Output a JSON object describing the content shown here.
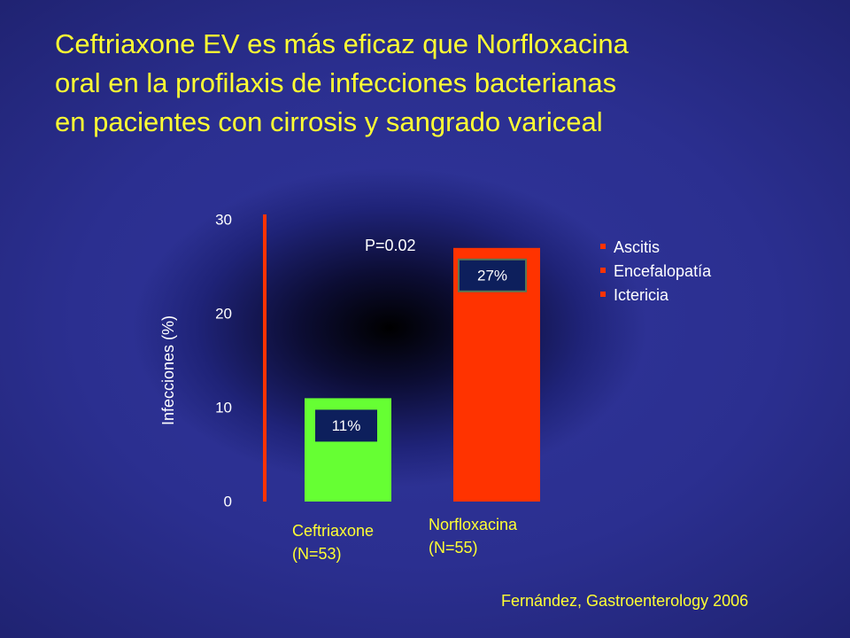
{
  "title_lines": [
    "Ceftriaxone EV es más eficaz que Norfloxacina",
    "oral en la profilaxis de infecciones bacterianas",
    "en pacientes con cirrosis y sangrado variceal"
  ],
  "legend_items": [
    "Ascitis",
    "Encefalopatía",
    "Ictericia"
  ],
  "source": "Fernández, Gastroenterology 2006",
  "colors": {
    "title": "#ffff33",
    "ceftriaxone_bar": "#66ff33",
    "norfloxacina_bar": "#ff3300",
    "value_box": "#0d1f5c",
    "axis": "#ff3300",
    "bullet": "#ff3300"
  },
  "chart_data": {
    "type": "bar",
    "categories": [
      [
        "Ceftriaxone",
        "(N=53)"
      ],
      [
        "Norfloxacina",
        "(N=55)"
      ]
    ],
    "values": [
      11,
      27
    ],
    "value_labels": [
      "11%",
      "27%"
    ],
    "ylabel": "Infecciones (%)",
    "yticks": [
      0,
      10,
      20,
      30
    ],
    "ylim": [
      0,
      30
    ],
    "annotation": "P=0.02",
    "grid": false
  }
}
